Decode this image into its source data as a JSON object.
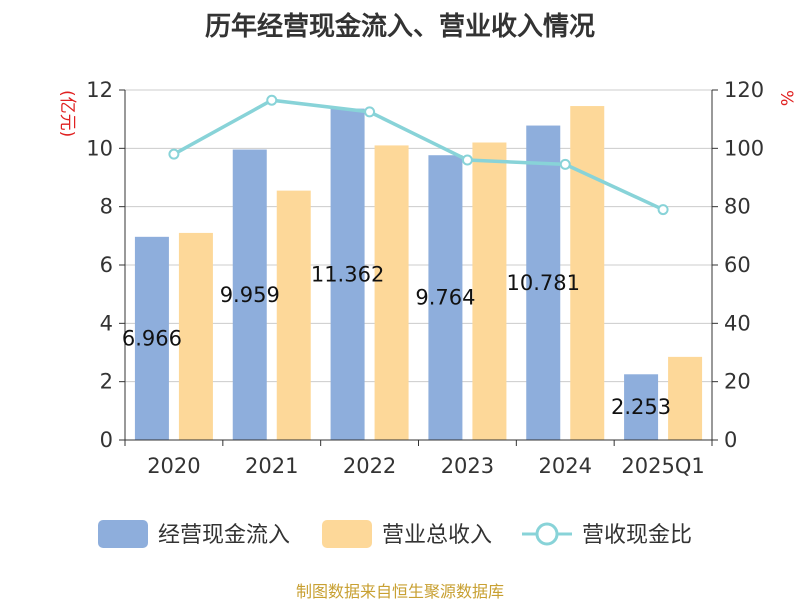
{
  "chart_data": {
    "type": "bar",
    "title": "历年经营现金流入、营业收入情况",
    "categories": [
      "2020",
      "2021",
      "2022",
      "2023",
      "2024",
      "2025Q1"
    ],
    "left_axis": {
      "unit_label": "(亿元)",
      "ylim": [
        0,
        12
      ],
      "ticks": [
        "0",
        "2",
        "4",
        "6",
        "8",
        "10",
        "12"
      ]
    },
    "right_axis": {
      "unit_label": "%",
      "ylim": [
        0,
        120
      ],
      "ticks": [
        "0",
        "20",
        "40",
        "60",
        "80",
        "100",
        "120"
      ]
    },
    "series": [
      {
        "name": "经营现金流入",
        "type": "bar",
        "axis": "left",
        "color": "#8eaedc",
        "values": [
          6.966,
          9.959,
          11.362,
          9.764,
          10.781,
          2.253
        ],
        "data_labels": [
          "6.966",
          "9.959",
          "11.362",
          "9.764",
          "10.781",
          "2.253"
        ]
      },
      {
        "name": "营业总收入",
        "type": "bar",
        "axis": "left",
        "color": "#fdd899",
        "values": [
          7.1,
          8.55,
          10.1,
          10.2,
          11.45,
          2.85
        ]
      },
      {
        "name": "营收现金比",
        "type": "line",
        "axis": "right",
        "color": "#88d3d8",
        "values": [
          98,
          116.5,
          112.5,
          96,
          94.5,
          79
        ]
      }
    ],
    "grid": true,
    "legend_position": "bottom"
  },
  "source_note": "制图数据来自恒生聚源数据库"
}
